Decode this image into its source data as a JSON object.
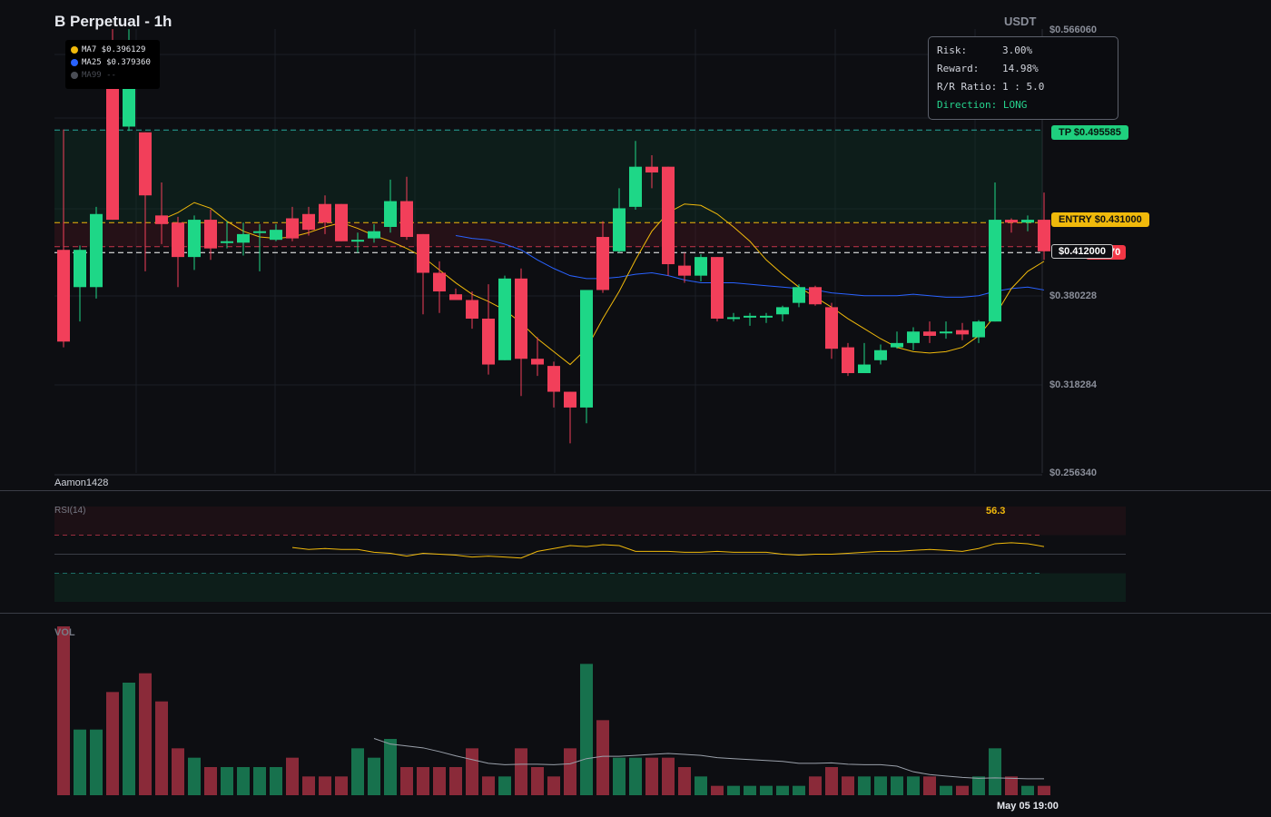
{
  "header": {
    "title": "B Perpetual - 1h",
    "quote": "USDT"
  },
  "legend": {
    "items": [
      {
        "label": "MA7 $0.396129",
        "color": "#f0b90b"
      },
      {
        "label": "MA25 $0.379360",
        "color": "#2962ff"
      },
      {
        "label": "MA99 --",
        "color": "#4a4d55"
      }
    ]
  },
  "rr_panel": {
    "risk_key": "Risk:",
    "risk_val": "3.00%",
    "reward_key": "Reward:",
    "reward_val": "14.98%",
    "ratio_key": "R/R Ratio:",
    "ratio_val": "1 : 5.0",
    "direction": "Direction: LONG"
  },
  "tags": {
    "tp": "TP $0.495585",
    "entry": "ENTRY $0.431000",
    "sl_partial": "70",
    "price": "$0.412000"
  },
  "y_axis": {
    "labels": [
      "$0.566060",
      "$0.380228",
      "$0.318284",
      "$0.256340"
    ]
  },
  "watermark": "Aamon1428",
  "rsi": {
    "label": "RSI(14)",
    "value": "56.3"
  },
  "volume": {
    "label": "VOL"
  },
  "time_axis": {
    "label": "May 05 19:00"
  },
  "colors": {
    "up": "#1ed787",
    "down": "#f23f5a",
    "ma7": "#f0b90b",
    "ma25": "#2962ff",
    "tp": "#26a69a",
    "entry": "#f0b90b"
  },
  "chart_data": {
    "type": "candlestick",
    "ylim": [
      0.25634,
      0.56606
    ],
    "levels": {
      "tp": 0.495585,
      "entry": 0.431,
      "stop": 0.418,
      "price": 0.412
    },
    "candles": [
      [
        0.412,
        0.348,
        0.496,
        0.344
      ],
      [
        0.386,
        0.412,
        0.415,
        0.362
      ],
      [
        0.386,
        0.437,
        0.442,
        0.378
      ],
      [
        0.538,
        0.433,
        0.566,
        0.433
      ],
      [
        0.498,
        0.538,
        0.566,
        0.495
      ],
      [
        0.494,
        0.45,
        0.494,
        0.397
      ],
      [
        0.436,
        0.43,
        0.459,
        0.416
      ],
      [
        0.431,
        0.407,
        0.435,
        0.386
      ],
      [
        0.407,
        0.433,
        0.436,
        0.398
      ],
      [
        0.433,
        0.413,
        0.44,
        0.405
      ],
      [
        0.418,
        0.418,
        0.432,
        0.413
      ],
      [
        0.417,
        0.423,
        0.431,
        0.408
      ],
      [
        0.425,
        0.425,
        0.43,
        0.397
      ],
      [
        0.419,
        0.426,
        0.43,
        0.418
      ],
      [
        0.434,
        0.42,
        0.442,
        0.418
      ],
      [
        0.437,
        0.426,
        0.442,
        0.422
      ],
      [
        0.444,
        0.431,
        0.45,
        0.423
      ],
      [
        0.444,
        0.418,
        0.444,
        0.418
      ],
      [
        0.419,
        0.419,
        0.424,
        0.41
      ],
      [
        0.42,
        0.425,
        0.43,
        0.417
      ],
      [
        0.428,
        0.446,
        0.461,
        0.424
      ],
      [
        0.446,
        0.421,
        0.463,
        0.419
      ],
      [
        0.423,
        0.396,
        0.423,
        0.367
      ],
      [
        0.396,
        0.383,
        0.404,
        0.368
      ],
      [
        0.381,
        0.377,
        0.385,
        0.377
      ],
      [
        0.377,
        0.364,
        0.383,
        0.357
      ],
      [
        0.364,
        0.332,
        0.388,
        0.325
      ],
      [
        0.335,
        0.392,
        0.394,
        0.335
      ],
      [
        0.392,
        0.336,
        0.399,
        0.31
      ],
      [
        0.336,
        0.332,
        0.351,
        0.324
      ],
      [
        0.331,
        0.313,
        0.334,
        0.302
      ],
      [
        0.313,
        0.302,
        0.313,
        0.277
      ],
      [
        0.302,
        0.384,
        0.384,
        0.291
      ],
      [
        0.421,
        0.384,
        0.432,
        0.382
      ],
      [
        0.411,
        0.441,
        0.455,
        0.41
      ],
      [
        0.442,
        0.47,
        0.488,
        0.44
      ],
      [
        0.47,
        0.466,
        0.478,
        0.455
      ],
      [
        0.47,
        0.402,
        0.47,
        0.394
      ],
      [
        0.401,
        0.394,
        0.41,
        0.389
      ],
      [
        0.394,
        0.407,
        0.409,
        0.39
      ],
      [
        0.407,
        0.364,
        0.407,
        0.362
      ],
      [
        0.365,
        0.365,
        0.368,
        0.362
      ],
      [
        0.366,
        0.366,
        0.368,
        0.359
      ],
      [
        0.366,
        0.366,
        0.368,
        0.361
      ],
      [
        0.367,
        0.372,
        0.373,
        0.362
      ],
      [
        0.375,
        0.386,
        0.388,
        0.372
      ],
      [
        0.386,
        0.374,
        0.387,
        0.373
      ],
      [
        0.372,
        0.343,
        0.375,
        0.336
      ],
      [
        0.344,
        0.326,
        0.347,
        0.324
      ],
      [
        0.326,
        0.332,
        0.347,
        0.326
      ],
      [
        0.335,
        0.342,
        0.346,
        0.332
      ],
      [
        0.344,
        0.347,
        0.355,
        0.343
      ],
      [
        0.347,
        0.355,
        0.358,
        0.342
      ],
      [
        0.355,
        0.352,
        0.362,
        0.347
      ],
      [
        0.355,
        0.355,
        0.362,
        0.35
      ],
      [
        0.356,
        0.353,
        0.361,
        0.349
      ],
      [
        0.351,
        0.362,
        0.363,
        0.347
      ],
      [
        0.362,
        0.433,
        0.459,
        0.362
      ],
      [
        0.433,
        0.431,
        0.434,
        0.424
      ],
      [
        0.431,
        0.433,
        0.436,
        0.425
      ],
      [
        0.433,
        0.411,
        0.452,
        0.405
      ]
    ],
    "volume": [
      18,
      7,
      7,
      11,
      12,
      13,
      10,
      5,
      4,
      3,
      3,
      3,
      3,
      3,
      4,
      2,
      2,
      2,
      5,
      4,
      6,
      3,
      3,
      3,
      3,
      5,
      2,
      2,
      5,
      3,
      2,
      5,
      14,
      8,
      4,
      4,
      4,
      4,
      3,
      2,
      1,
      1,
      1,
      1,
      1,
      1,
      2,
      3,
      2,
      2,
      2,
      2,
      2,
      2,
      1,
      1,
      2,
      5,
      2,
      1,
      1
    ],
    "rsi": [
      null,
      null,
      null,
      null,
      null,
      null,
      null,
      null,
      null,
      null,
      null,
      null,
      null,
      null,
      57,
      55,
      56,
      55,
      55,
      52,
      51,
      48,
      51,
      50,
      49,
      47,
      48,
      47,
      46,
      53,
      56,
      59,
      58,
      60,
      59,
      53,
      53,
      53,
      52,
      52,
      53,
      52,
      52,
      52,
      50,
      49,
      50,
      50,
      51,
      52,
      53,
      53,
      54,
      55,
      54,
      53,
      56,
      61,
      62,
      61,
      58
    ],
    "ma7": [
      null,
      null,
      null,
      null,
      null,
      null,
      0.433,
      0.438,
      0.445,
      0.441,
      0.432,
      0.425,
      0.421,
      0.42,
      0.421,
      0.424,
      0.428,
      0.431,
      0.427,
      0.422,
      0.418,
      0.413,
      0.407,
      0.398,
      0.389,
      0.381,
      0.376,
      0.37,
      0.361,
      0.35,
      0.341,
      0.332,
      0.343,
      0.364,
      0.383,
      0.405,
      0.425,
      0.438,
      0.444,
      0.443,
      0.437,
      0.428,
      0.418,
      0.405,
      0.395,
      0.386,
      0.379,
      0.372,
      0.364,
      0.357,
      0.35,
      0.344,
      0.341,
      0.34,
      0.341,
      0.344,
      0.352,
      0.366,
      0.385,
      0.397,
      0.404
    ],
    "ma25": [
      null,
      null,
      null,
      null,
      null,
      null,
      null,
      null,
      null,
      null,
      null,
      null,
      null,
      null,
      null,
      null,
      null,
      null,
      null,
      null,
      null,
      null,
      null,
      null,
      0.422,
      0.42,
      0.419,
      0.416,
      0.412,
      0.405,
      0.399,
      0.394,
      0.392,
      0.392,
      0.393,
      0.395,
      0.396,
      0.394,
      0.391,
      0.389,
      0.389,
      0.389,
      0.388,
      0.387,
      0.386,
      0.385,
      0.384,
      0.382,
      0.381,
      0.38,
      0.38,
      0.38,
      0.381,
      0.38,
      0.379,
      0.379,
      0.38,
      0.383,
      0.385,
      0.386,
      0.384
    ]
  }
}
